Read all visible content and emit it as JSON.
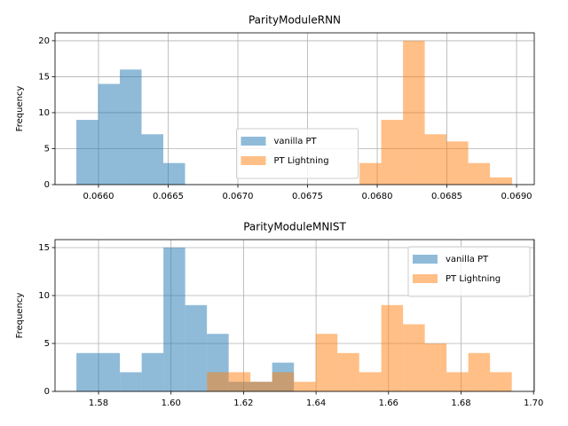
{
  "chart_data": [
    {
      "type": "histogram",
      "title": "ParityModuleRNN",
      "y_label": "Frequency",
      "grid": true,
      "legend": "lower center",
      "xlim": [
        0.065688,
        0.069127
      ],
      "ylim": [
        0,
        21.1
      ],
      "xticks": [
        {
          "value": 0.066,
          "label": "0.0660"
        },
        {
          "value": 0.0665,
          "label": "0.0665"
        },
        {
          "value": 0.067,
          "label": "0.0670"
        },
        {
          "value": 0.0675,
          "label": "0.0675"
        },
        {
          "value": 0.068,
          "label": "0.0680"
        },
        {
          "value": 0.0685,
          "label": "0.0685"
        },
        {
          "value": 0.069,
          "label": "0.0690"
        }
      ],
      "yticks": [
        0,
        5,
        10,
        15,
        20
      ],
      "series": [
        {
          "name": "vanilla PT",
          "color": "#1f77b4",
          "bins": [
            0.065841,
            0.065997,
            0.066153,
            0.066309,
            0.066465,
            0.066621
          ],
          "values": [
            9,
            14,
            16,
            7,
            3
          ]
        },
        {
          "name": "PT Lightning",
          "color": "#ff7f0e",
          "bins": [
            0.067873,
            0.068029,
            0.068185,
            0.068341,
            0.068497,
            0.068653,
            0.068809,
            0.068968
          ],
          "values": [
            3,
            9,
            20,
            7,
            6,
            3,
            1
          ]
        }
      ]
    },
    {
      "type": "histogram",
      "title": "ParityModuleMNIST",
      "y_label": "Frequency",
      "grid": true,
      "legend": "upper right",
      "xlim": [
        1.568,
        1.7002
      ],
      "ylim": [
        0,
        15.83
      ],
      "xticks": [
        1.58,
        {
          "value": 1.6,
          "label": "1.60"
        },
        1.62,
        1.64,
        1.66,
        1.68,
        {
          "value": 1.7,
          "label": "1.70"
        }
      ],
      "yticks": [
        0,
        5,
        10,
        15
      ],
      "series": [
        {
          "name": "vanilla PT",
          "color": "#1f77b4",
          "bins": [
            1.5739,
            1.5799,
            1.5859,
            1.5919,
            1.5979,
            1.6039,
            1.6099,
            1.6159,
            1.6219,
            1.6279,
            1.6339
          ],
          "values": [
            4,
            4,
            2,
            4,
            15,
            9,
            6,
            1,
            1,
            3
          ]
        },
        {
          "name": "PT Lightning",
          "color": "#ff7f0e",
          "bins": [
            1.6099,
            1.6159,
            1.6219,
            1.6279,
            1.6339,
            1.6399,
            1.6459,
            1.6519,
            1.658,
            1.664,
            1.67,
            1.676,
            1.682,
            1.688,
            1.694
          ],
          "values": [
            2,
            2,
            1,
            2,
            1,
            6,
            4,
            2,
            9,
            7,
            5,
            2,
            4,
            2
          ]
        }
      ]
    }
  ]
}
